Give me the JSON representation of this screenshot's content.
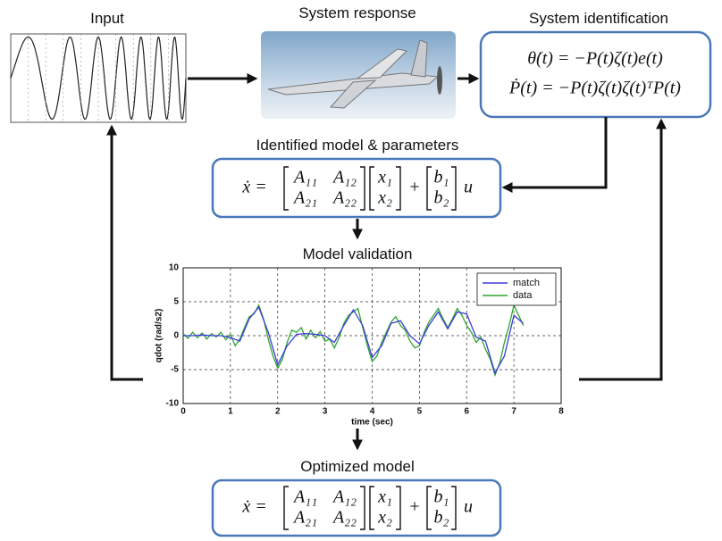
{
  "labels": {
    "input": "Input",
    "system_response": "System response",
    "system_identification": "System identification",
    "identified_model": "Identified model & parameters",
    "model_validation": "Model validation",
    "optimized_model": "Optimized model"
  },
  "identification_equations": [
    "θ̇(t) = −P(t)ζ(t)e(t)",
    "Ṗ(t) = −P(t)ζ(t)ζ(t)ᵀP(t)"
  ],
  "identified_equation": {
    "lhs": "ẋ =",
    "A": [
      [
        "A₁₁",
        "A₁₂"
      ],
      [
        "A₂₁",
        "A₂₂"
      ]
    ],
    "x": [
      "x₁",
      "x₂"
    ],
    "plus": "+",
    "b": [
      "b₁",
      "b₂"
    ],
    "u": "u"
  },
  "optimized_equation": {
    "lhs": "ẋ =",
    "A": [
      [
        "A₁₁",
        "A₁₂"
      ],
      [
        "A₂₁",
        "A₂₂"
      ]
    ],
    "x": [
      "x₁",
      "x₂"
    ],
    "plus": "+",
    "b": [
      "b₁",
      "b₂"
    ],
    "u": "u"
  },
  "chart": {
    "type": "line",
    "xlabel": "time (sec)",
    "ylabel": "qdot (rad/s2)",
    "xlim": [
      0,
      8
    ],
    "ylim": [
      -10,
      10
    ],
    "xticks": [
      0,
      1,
      2,
      3,
      4,
      5,
      6,
      7,
      8
    ],
    "yticks": [
      -10,
      -5,
      0,
      5,
      10
    ],
    "grid": true,
    "legend": "upper right",
    "series": [
      {
        "name": "match",
        "color": "#3b3bdc",
        "x": [
          0,
          0.2,
          0.4,
          0.6,
          0.8,
          1.0,
          1.2,
          1.4,
          1.6,
          1.8,
          2.0,
          2.2,
          2.4,
          2.6,
          2.8,
          3.0,
          3.2,
          3.4,
          3.6,
          3.8,
          4.0,
          4.2,
          4.4,
          4.6,
          4.8,
          5.0,
          5.2,
          5.4,
          5.6,
          5.8,
          6.0,
          6.2,
          6.4,
          6.6,
          6.8,
          7.0,
          7.2
        ],
        "values": [
          0,
          0,
          0.1,
          0,
          0,
          -0.3,
          -0.8,
          2.5,
          4.2,
          0.5,
          -4.3,
          -1.5,
          0.2,
          0.3,
          0.2,
          0,
          -1,
          1.5,
          3.8,
          1.5,
          -3.2,
          -1.5,
          1.8,
          2.2,
          0,
          -1.2,
          1.5,
          3.5,
          1,
          3.5,
          3.2,
          -0.2,
          -0.8,
          -5.5,
          -3,
          3,
          1.8
        ]
      },
      {
        "name": "data",
        "color": "#2fa62f",
        "x": [
          0,
          0.1,
          0.2,
          0.3,
          0.4,
          0.5,
          0.6,
          0.7,
          0.8,
          0.9,
          1.0,
          1.1,
          1.2,
          1.3,
          1.4,
          1.5,
          1.6,
          1.7,
          1.8,
          1.9,
          2.0,
          2.1,
          2.2,
          2.3,
          2.4,
          2.5,
          2.6,
          2.7,
          2.8,
          2.9,
          3.0,
          3.1,
          3.2,
          3.3,
          3.4,
          3.5,
          3.6,
          3.7,
          3.8,
          3.9,
          4.0,
          4.1,
          4.2,
          4.3,
          4.4,
          4.5,
          4.6,
          4.7,
          4.8,
          4.9,
          5.0,
          5.1,
          5.2,
          5.3,
          5.4,
          5.5,
          5.6,
          5.7,
          5.8,
          5.9,
          6.0,
          6.1,
          6.2,
          6.3,
          6.4,
          6.5,
          6.6,
          6.7,
          6.8,
          6.9,
          7.0,
          7.1,
          7.2
        ],
        "values": [
          0.3,
          -0.4,
          0.5,
          -0.3,
          0.4,
          -0.5,
          0.3,
          -0.2,
          0.5,
          -0.6,
          0.2,
          -1.5,
          -0.5,
          1.2,
          2.8,
          3.2,
          4.5,
          2.5,
          -0.5,
          -3,
          -4.8,
          -3.5,
          -1,
          0.8,
          0.5,
          1.2,
          -0.5,
          0.8,
          -0.3,
          0.6,
          -0.8,
          -0.5,
          -1.8,
          -0.3,
          1.8,
          3,
          3.5,
          4,
          1.2,
          -1.5,
          -3.8,
          -3,
          -1,
          0.5,
          2,
          2.8,
          1.5,
          0.8,
          -0.8,
          -1.8,
          -1.5,
          0.5,
          2,
          3,
          4,
          2.5,
          1.2,
          2.5,
          4,
          3,
          1.5,
          0.5,
          -1,
          -0.2,
          -2,
          -3.5,
          -5.8,
          -4,
          -1,
          1.5,
          4.5,
          3,
          1.5
        ]
      }
    ]
  }
}
